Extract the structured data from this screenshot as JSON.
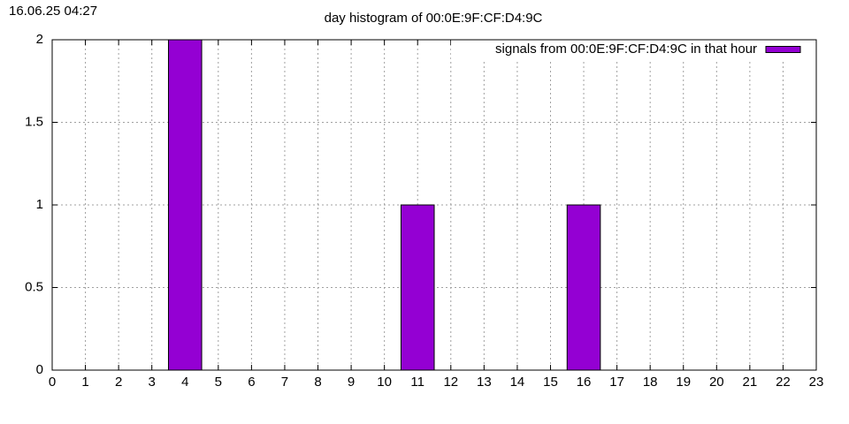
{
  "chart_data": {
    "type": "bar",
    "timestamp": "16.06.25 04:27",
    "title": "day histogram of 00:0E:9F:CF:D4:9C",
    "series": [
      {
        "name": "signals from 00:0E:9F:CF:D4:9C in that hour",
        "color": "#9400d3",
        "x": [
          4,
          11,
          16
        ],
        "values": [
          2,
          1,
          1
        ]
      }
    ],
    "xlim": [
      0,
      23
    ],
    "xticks": [
      0,
      1,
      2,
      3,
      4,
      5,
      6,
      7,
      8,
      9,
      10,
      11,
      12,
      13,
      14,
      15,
      16,
      17,
      18,
      19,
      20,
      21,
      22,
      23
    ],
    "ylim": [
      0,
      2
    ],
    "yticks": [
      0,
      0.5,
      1,
      1.5,
      2
    ],
    "grid": true,
    "legend": "top-right"
  }
}
